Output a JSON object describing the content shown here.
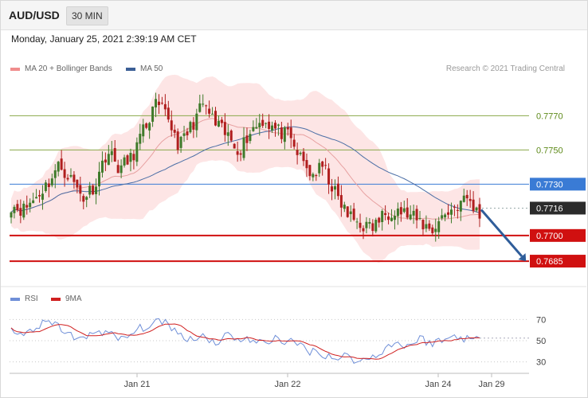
{
  "header": {
    "symbol": "AUD/USD",
    "timeframe": "30 MIN",
    "datetime": "Monday, January 25, 2021 2:39:19 AM CET"
  },
  "legend": {
    "ma20": {
      "label": "MA 20 + Bollinger Bands",
      "color": "#f08c8c"
    },
    "ma50": {
      "label": "MA 50",
      "color": "#3c5f96"
    },
    "credit": "Research © 2021 Trading Central"
  },
  "rsi_legend": {
    "rsi": {
      "label": "RSI",
      "color": "#6f8fd8"
    },
    "ma9": {
      "label": "9MA",
      "color": "#d02020"
    }
  },
  "colors": {
    "bull": "#3f7a2a",
    "bear": "#b01e1e",
    "bollinger": "#fde0e0",
    "green_level": "#8aa84a",
    "blue_level": "#3a7bd5",
    "red_level": "#d01010",
    "arrow": "#2f5d9a"
  },
  "chart_data": [
    {
      "type": "candlestick",
      "ylim": [
        0.7672,
        0.7793
      ],
      "x_ticks": [
        "Jan 21",
        "Jan 22",
        "Jan 24",
        "Jan 29"
      ],
      "levels": [
        {
          "value": 0.777,
          "label": "0.7770",
          "kind": "resistance"
        },
        {
          "value": 0.775,
          "label": "0.7750",
          "kind": "resistance"
        },
        {
          "value": 0.773,
          "label": "0.7730",
          "kind": "pivot"
        },
        {
          "value": 0.7716,
          "label": "0.7716",
          "kind": "current"
        },
        {
          "value": 0.77,
          "label": "0.7700",
          "kind": "support"
        },
        {
          "value": 0.7685,
          "label": "0.7685",
          "kind": "support"
        }
      ],
      "close_path": [
        0.7718,
        0.7715,
        0.7722,
        0.773,
        0.7741,
        0.7733,
        0.7722,
        0.773,
        0.775,
        0.7739,
        0.7745,
        0.7761,
        0.7776,
        0.777,
        0.7752,
        0.7764,
        0.7777,
        0.7765,
        0.7758,
        0.775,
        0.7762,
        0.7768,
        0.7762,
        0.7758,
        0.7746,
        0.7735,
        0.774,
        0.7724,
        0.7712,
        0.7707,
        0.7704,
        0.7712,
        0.7716,
        0.7712,
        0.7708,
        0.7703,
        0.7712,
        0.7717,
        0.7722,
        0.7711
      ],
      "forecast": {
        "from": 0.7716,
        "to": 0.7685
      }
    },
    {
      "type": "line",
      "name": "RSI",
      "ylim": [
        20,
        80
      ],
      "y_ticks": [
        70,
        50,
        30
      ],
      "values": [
        58,
        55,
        62,
        67,
        63,
        55,
        50,
        60,
        58,
        50,
        56,
        63,
        66,
        68,
        55,
        52,
        55,
        48,
        56,
        52,
        50,
        47,
        53,
        49,
        46,
        40,
        38,
        33,
        36,
        30,
        34,
        42,
        48,
        45,
        52,
        48,
        50,
        55,
        52,
        50
      ]
    }
  ]
}
